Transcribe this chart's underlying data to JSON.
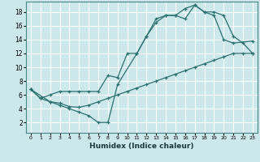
{
  "xlabel": "Humidex (Indice chaleur)",
  "bg_color": "#cce8ea",
  "grid_color": "#ffffff",
  "line_color": "#2d7070",
  "xlim": [
    -0.5,
    23.5
  ],
  "ylim": [
    0.5,
    19.5
  ],
  "xticks": [
    0,
    1,
    2,
    3,
    4,
    5,
    6,
    7,
    8,
    9,
    10,
    11,
    12,
    13,
    14,
    15,
    16,
    17,
    18,
    19,
    20,
    21,
    22,
    23
  ],
  "yticks": [
    2,
    4,
    6,
    8,
    10,
    12,
    14,
    16,
    18
  ],
  "line1_x": [
    0,
    1,
    2,
    3,
    4,
    5,
    6,
    7,
    8,
    9,
    10,
    11,
    12,
    13,
    14,
    15,
    16,
    17,
    18,
    19,
    20,
    21,
    22,
    23
  ],
  "line1_y": [
    6.8,
    5.5,
    5.0,
    4.8,
    4.3,
    4.2,
    4.5,
    5.0,
    5.5,
    6.0,
    6.5,
    7.0,
    7.5,
    8.0,
    8.5,
    9.0,
    9.5,
    10.0,
    10.5,
    11.0,
    11.5,
    12.0,
    12.0,
    12.0
  ],
  "line2_x": [
    0,
    2,
    3,
    4,
    5,
    6,
    7,
    8,
    9,
    11,
    12,
    13,
    14,
    15,
    16,
    17,
    18,
    19,
    20,
    21,
    23
  ],
  "line2_y": [
    6.8,
    5.0,
    4.5,
    4.0,
    3.5,
    3.0,
    2.0,
    2.0,
    7.5,
    12.0,
    14.5,
    17.0,
    17.5,
    17.5,
    17.0,
    19.0,
    18.0,
    17.5,
    14.0,
    13.5,
    13.8
  ],
  "line3_x": [
    0,
    1,
    2,
    3,
    4,
    5,
    6,
    7,
    8,
    9,
    10,
    11,
    12,
    13,
    14,
    15,
    16,
    17,
    18,
    19,
    20,
    21,
    22,
    23
  ],
  "line3_y": [
    6.8,
    5.5,
    6.0,
    6.5,
    6.5,
    6.5,
    6.5,
    6.5,
    8.8,
    8.5,
    12.0,
    12.0,
    14.5,
    16.5,
    17.5,
    17.5,
    18.5,
    19.0,
    18.0,
    18.0,
    17.5,
    14.5,
    13.5,
    12.0
  ]
}
